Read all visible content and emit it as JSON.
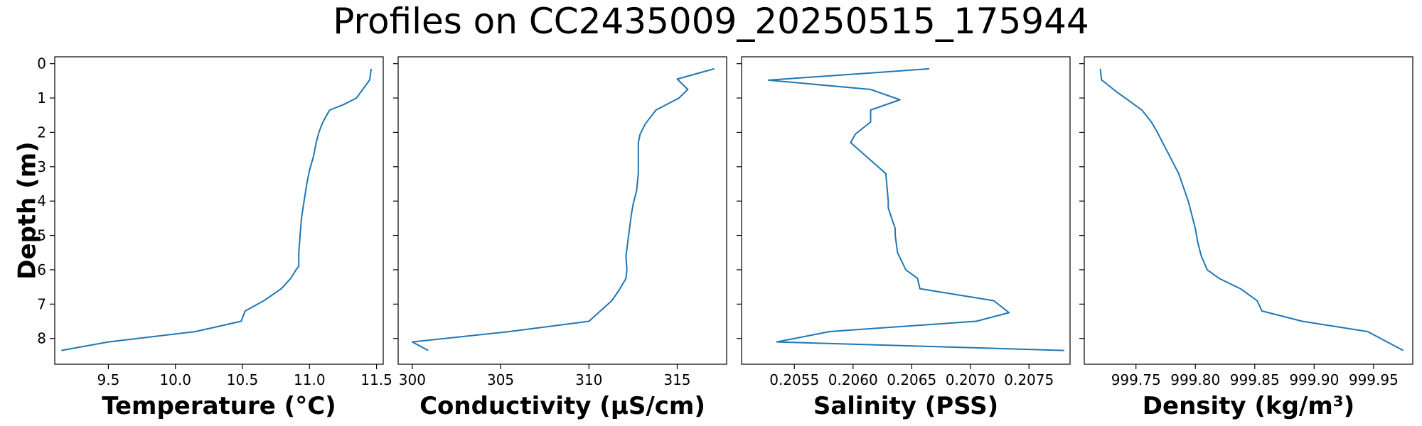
{
  "figure_title": "Profiles on CC2435009_20250515_175944",
  "line_color": "#1f77b4",
  "chart_data": [
    {
      "type": "line",
      "xlabel": "Temperature (°C)",
      "ylabel": "Depth (m)",
      "xlim": [
        9.1,
        11.55
      ],
      "ylim": [
        8.75,
        -0.2
      ],
      "xticks": [
        9.5,
        10.0,
        10.5,
        11.0,
        11.5
      ],
      "xtick_labels": [
        "9.5",
        "10.0",
        "10.5",
        "11.0",
        "11.5"
      ],
      "yticks": [
        0,
        1,
        2,
        3,
        4,
        5,
        6,
        7,
        8
      ],
      "ytick_labels": [
        "0",
        "1",
        "2",
        "3",
        "4",
        "5",
        "6",
        "7",
        "8"
      ],
      "grid": false,
      "series": [
        {
          "x": [
            11.46,
            11.45,
            11.35,
            11.25,
            11.15,
            11.1,
            11.07,
            11.05,
            11.03,
            11.0,
            10.98,
            10.96,
            10.94,
            10.93,
            10.92,
            10.92,
            10.9,
            10.86,
            10.79,
            10.66,
            10.52,
            10.49,
            10.15,
            9.5,
            9.15
          ],
          "y": [
            0.15,
            0.47,
            1.0,
            1.2,
            1.35,
            1.7,
            2.0,
            2.3,
            2.7,
            3.1,
            3.5,
            4.0,
            4.5,
            5.0,
            5.5,
            5.9,
            6.0,
            6.25,
            6.55,
            6.9,
            7.2,
            7.5,
            7.8,
            8.1,
            8.35
          ]
        }
      ]
    },
    {
      "type": "line",
      "xlabel": "Conductivity (µS/cm)",
      "ylabel": "",
      "xlim": [
        299.2,
        317.8
      ],
      "ylim": [
        8.75,
        -0.2
      ],
      "xticks": [
        300,
        305,
        310,
        315
      ],
      "xtick_labels": [
        "300",
        "305",
        "310",
        "315"
      ],
      "yticks": [
        0,
        1,
        2,
        3,
        4,
        5,
        6,
        7,
        8
      ],
      "ytick_labels": [],
      "grid": false,
      "series": [
        {
          "x": [
            317.1,
            315.0,
            315.6,
            315.1,
            313.8,
            313.2,
            312.9,
            312.8,
            312.8,
            312.8,
            312.7,
            312.5,
            312.4,
            312.3,
            312.2,
            312.1,
            312.15,
            312.1,
            311.7,
            311.3,
            310.0,
            305.5,
            300.0,
            300.9
          ],
          "y": [
            0.15,
            0.45,
            0.75,
            1.0,
            1.35,
            1.75,
            2.05,
            2.3,
            2.7,
            3.2,
            3.7,
            4.1,
            4.4,
            4.8,
            5.2,
            5.6,
            6.0,
            6.25,
            6.6,
            6.9,
            7.5,
            7.8,
            8.1,
            8.35
          ]
        }
      ]
    },
    {
      "type": "line",
      "xlabel": "Salinity (PSS)",
      "ylabel": "",
      "xlim": [
        0.20505,
        0.20785
      ],
      "ylim": [
        8.75,
        -0.2
      ],
      "xticks": [
        0.2055,
        0.206,
        0.2065,
        0.207,
        0.2075
      ],
      "xtick_labels": [
        "0.2055",
        "0.2060",
        "0.2065",
        "0.2070",
        "0.2075"
      ],
      "yticks": [
        0,
        1,
        2,
        3,
        4,
        5,
        6,
        7,
        8
      ],
      "ytick_labels": [],
      "grid": false,
      "series": [
        {
          "x": [
            0.20665,
            0.20528,
            0.20615,
            0.2064,
            0.20615,
            0.20615,
            0.20602,
            0.20598,
            0.20608,
            0.20628,
            0.20629,
            0.2063,
            0.2063,
            0.20632,
            0.20636,
            0.20636,
            0.20638,
            0.20645,
            0.20655,
            0.20657,
            0.2072,
            0.20733,
            0.20705,
            0.2058,
            0.20535,
            0.2078
          ],
          "y": [
            0.15,
            0.48,
            0.75,
            1.05,
            1.35,
            1.7,
            2.05,
            2.3,
            2.6,
            3.2,
            3.6,
            4.0,
            4.2,
            4.4,
            4.8,
            5.0,
            5.5,
            6.0,
            6.25,
            6.55,
            6.9,
            7.25,
            7.5,
            7.8,
            8.1,
            8.35
          ]
        }
      ]
    },
    {
      "type": "line",
      "xlabel": "Density (kg/m³)",
      "ylabel": "",
      "xlim": [
        999.7065,
        999.983
      ],
      "ylim": [
        8.75,
        -0.2
      ],
      "xticks": [
        999.75,
        999.8,
        999.85,
        999.9,
        999.95
      ],
      "xtick_labels": [
        "999.75",
        "999.80",
        "999.85",
        "999.90",
        "999.95"
      ],
      "yticks": [
        0,
        1,
        2,
        3,
        4,
        5,
        6,
        7,
        8
      ],
      "ytick_labels": [],
      "grid": false,
      "series": [
        {
          "x": [
            999.72,
            999.721,
            999.733,
            999.745,
            999.755,
            999.763,
            999.768,
            999.774,
            999.78,
            999.786,
            999.79,
            999.794,
            999.797,
            999.8,
            999.802,
            999.805,
            999.81,
            999.82,
            999.838,
            999.852,
            999.856,
            999.89,
            999.945,
            999.975
          ],
          "y": [
            0.15,
            0.47,
            0.8,
            1.1,
            1.35,
            1.7,
            2.0,
            2.4,
            2.8,
            3.2,
            3.6,
            4.0,
            4.4,
            4.8,
            5.2,
            5.6,
            6.0,
            6.25,
            6.55,
            6.9,
            7.2,
            7.5,
            7.8,
            8.35
          ]
        }
      ]
    }
  ]
}
